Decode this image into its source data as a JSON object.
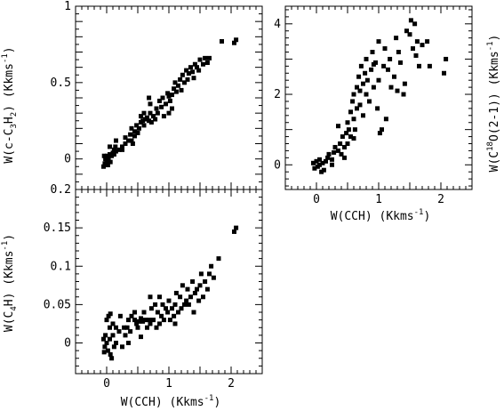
{
  "chart_data": [
    {
      "id": "c3h2",
      "type": "scatter",
      "xlabel": "",
      "ylabel_main": "W(c-C",
      "ylabel_sub1": "3",
      "ylabel_mid": "H",
      "ylabel_sub2": "2",
      "ylabel_tail": ") (Kkms",
      "ylabel_sup": "-1",
      "ylabel_close": ")",
      "xlim": [
        -0.5,
        2.5
      ],
      "ylim": [
        -0.2,
        1.0
      ],
      "yticks": [
        {
          "v": 0,
          "label": "0"
        },
        {
          "v": 0.5,
          "label": "0.5"
        },
        {
          "v": 1,
          "label": "1"
        }
      ],
      "xticks": [],
      "points": [
        [
          -0.05,
          -0.05
        ],
        [
          -0.03,
          -0.03
        ],
        [
          -0.02,
          0.0
        ],
        [
          0.0,
          -0.02
        ],
        [
          0.01,
          0.02
        ],
        [
          0.03,
          0.0
        ],
        [
          0.05,
          0.03
        ],
        [
          0.02,
          -0.04
        ],
        [
          0.06,
          -0.02
        ],
        [
          0.08,
          0.02
        ],
        [
          0.1,
          0.04
        ],
        [
          0.12,
          0.03
        ],
        [
          0.12,
          0.06
        ],
        [
          0.15,
          0.05
        ],
        [
          0.14,
          0.08
        ],
        [
          0.2,
          0.06
        ],
        [
          0.25,
          0.08
        ],
        [
          0.3,
          0.1
        ],
        [
          0.3,
          0.14
        ],
        [
          0.35,
          0.12
        ],
        [
          0.38,
          0.16
        ],
        [
          0.4,
          0.2
        ],
        [
          0.4,
          0.12
        ],
        [
          0.42,
          0.1
        ],
        [
          0.45,
          0.18
        ],
        [
          0.48,
          0.22
        ],
        [
          0.5,
          0.17
        ],
        [
          0.52,
          0.2
        ],
        [
          0.55,
          0.24
        ],
        [
          0.55,
          0.28
        ],
        [
          0.58,
          0.25
        ],
        [
          0.6,
          0.22
        ],
        [
          0.6,
          0.3
        ],
        [
          0.62,
          0.26
        ],
        [
          0.65,
          0.27
        ],
        [
          0.68,
          0.25
        ],
        [
          0.7,
          0.3
        ],
        [
          0.7,
          0.36
        ],
        [
          0.72,
          0.24
        ],
        [
          0.75,
          0.28
        ],
        [
          0.78,
          0.26
        ],
        [
          0.8,
          0.33
        ],
        [
          0.82,
          0.3
        ],
        [
          0.85,
          0.38
        ],
        [
          0.88,
          0.34
        ],
        [
          0.9,
          0.4
        ],
        [
          0.92,
          0.28
        ],
        [
          0.95,
          0.36
        ],
        [
          0.98,
          0.43
        ],
        [
          1.0,
          0.41
        ],
        [
          1.02,
          0.38
        ],
        [
          1.05,
          0.42
        ],
        [
          1.05,
          0.33
        ],
        [
          1.08,
          0.46
        ],
        [
          1.1,
          0.5
        ],
        [
          1.12,
          0.44
        ],
        [
          1.15,
          0.48
        ],
        [
          1.18,
          0.52
        ],
        [
          1.2,
          0.45
        ],
        [
          1.22,
          0.55
        ],
        [
          1.25,
          0.5
        ],
        [
          1.28,
          0.58
        ],
        [
          1.3,
          0.52
        ],
        [
          1.32,
          0.56
        ],
        [
          1.35,
          0.6
        ],
        [
          1.38,
          0.57
        ],
        [
          1.4,
          0.53
        ],
        [
          1.42,
          0.62
        ],
        [
          1.45,
          0.6
        ],
        [
          1.48,
          0.58
        ],
        [
          1.5,
          0.65
        ],
        [
          1.55,
          0.62
        ],
        [
          1.58,
          0.66
        ],
        [
          1.62,
          0.63
        ],
        [
          1.65,
          0.66
        ],
        [
          1.85,
          0.77
        ],
        [
          2.05,
          0.76
        ],
        [
          2.08,
          0.78
        ],
        [
          0.68,
          0.4
        ],
        [
          0.25,
          0.06
        ],
        [
          0.45,
          0.15
        ],
        [
          0.15,
          0.12
        ],
        [
          0.05,
          0.08
        ],
        [
          -0.04,
          0.02
        ],
        [
          1.0,
          0.3
        ]
      ]
    },
    {
      "id": "c18o",
      "type": "scatter",
      "xlabel_main": "W(CCH) (Kkms",
      "xlabel_sup": "-1",
      "xlabel_close": ")",
      "ylabel_main": "W(C",
      "ylabel_sup1": "18",
      "ylabel_mid": "O(2-1)) (Kkms",
      "ylabel_sup2": "-1",
      "ylabel_close": ")",
      "xlim": [
        -0.5,
        2.5
      ],
      "ylim": [
        -0.7,
        4.5
      ],
      "yticks": [
        {
          "v": 0,
          "label": "0"
        },
        {
          "v": 2,
          "label": "2"
        },
        {
          "v": 4,
          "label": "4"
        }
      ],
      "xticks": [
        {
          "v": 0,
          "label": "0"
        },
        {
          "v": 1,
          "label": "1"
        },
        {
          "v": 2,
          "label": "2"
        }
      ],
      "points": [
        [
          -0.05,
          0.05
        ],
        [
          -0.03,
          -0.1
        ],
        [
          0.0,
          0.1
        ],
        [
          0.02,
          -0.05
        ],
        [
          0.05,
          0.0
        ],
        [
          0.05,
          0.15
        ],
        [
          0.08,
          -0.2
        ],
        [
          0.1,
          0.05
        ],
        [
          0.12,
          -0.15
        ],
        [
          0.15,
          0.1
        ],
        [
          0.18,
          0.2
        ],
        [
          0.2,
          0.3
        ],
        [
          0.25,
          0.15
        ],
        [
          0.28,
          0.35
        ],
        [
          0.3,
          0.5
        ],
        [
          0.35,
          0.4
        ],
        [
          0.38,
          0.6
        ],
        [
          0.4,
          0.3
        ],
        [
          0.42,
          0.8
        ],
        [
          0.45,
          0.5
        ],
        [
          0.48,
          0.9
        ],
        [
          0.5,
          1.2
        ],
        [
          0.5,
          0.6
        ],
        [
          0.52,
          1.0
        ],
        [
          0.55,
          1.5
        ],
        [
          0.55,
          0.8
        ],
        [
          0.58,
          1.8
        ],
        [
          0.6,
          1.3
        ],
        [
          0.6,
          2.0
        ],
        [
          0.62,
          1.0
        ],
        [
          0.65,
          2.2
        ],
        [
          0.65,
          1.6
        ],
        [
          0.68,
          2.5
        ],
        [
          0.7,
          1.7
        ],
        [
          0.7,
          2.1
        ],
        [
          0.72,
          2.8
        ],
        [
          0.75,
          2.3
        ],
        [
          0.75,
          1.4
        ],
        [
          0.78,
          2.6
        ],
        [
          0.8,
          2.0
        ],
        [
          0.8,
          3.0
        ],
        [
          0.82,
          2.4
        ],
        [
          0.85,
          1.8
        ],
        [
          0.88,
          2.7
        ],
        [
          0.9,
          3.2
        ],
        [
          0.92,
          2.2
        ],
        [
          0.95,
          2.9
        ],
        [
          0.98,
          1.6
        ],
        [
          1.0,
          2.4
        ],
        [
          1.0,
          3.5
        ],
        [
          1.02,
          0.9
        ],
        [
          1.05,
          1.0
        ],
        [
          1.08,
          2.8
        ],
        [
          1.1,
          3.3
        ],
        [
          1.12,
          1.3
        ],
        [
          1.15,
          2.7
        ],
        [
          1.18,
          3.0
        ],
        [
          1.2,
          2.2
        ],
        [
          1.25,
          2.5
        ],
        [
          1.28,
          3.6
        ],
        [
          1.3,
          2.1
        ],
        [
          1.32,
          3.2
        ],
        [
          1.35,
          2.9
        ],
        [
          1.4,
          2.0
        ],
        [
          1.42,
          2.3
        ],
        [
          1.45,
          3.8
        ],
        [
          1.5,
          3.7
        ],
        [
          1.52,
          4.1
        ],
        [
          1.55,
          3.3
        ],
        [
          1.58,
          4.0
        ],
        [
          1.6,
          3.1
        ],
        [
          1.62,
          3.5
        ],
        [
          1.65,
          2.8
        ],
        [
          1.7,
          3.4
        ],
        [
          1.78,
          3.5
        ],
        [
          1.82,
          2.8
        ],
        [
          2.08,
          3.0
        ],
        [
          2.05,
          2.6
        ],
        [
          0.35,
          1.1
        ],
        [
          0.45,
          0.2
        ],
        [
          0.25,
          0.0
        ],
        [
          0.6,
          0.75
        ],
        [
          0.92,
          2.85
        ]
      ]
    },
    {
      "id": "c4h",
      "type": "scatter",
      "xlabel_main": "W(CCH) (Kkms",
      "xlabel_sup": "-1",
      "xlabel_close": ")",
      "ylabel_main": "W(C",
      "ylabel_sub": "4",
      "ylabel_mid": "H) (Kkms",
      "ylabel_sup": "-1",
      "ylabel_close": ")",
      "xlim": [
        -0.5,
        2.5
      ],
      "ylim": [
        -0.04,
        0.2
      ],
      "yticks": [
        {
          "v": 0,
          "label": "0"
        },
        {
          "v": 0.05,
          "label": "0.05"
        },
        {
          "v": 0.1,
          "label": "0.1"
        },
        {
          "v": 0.15,
          "label": "0.15"
        },
        {
          "v": 0.2,
          "label": "0.2"
        }
      ],
      "xticks": [
        {
          "v": 0,
          "label": "0"
        },
        {
          "v": 1,
          "label": "1"
        },
        {
          "v": 2,
          "label": "2"
        }
      ],
      "points": [
        [
          -0.05,
          0.005
        ],
        [
          -0.03,
          -0.005
        ],
        [
          -0.02,
          0.01
        ],
        [
          0.0,
          0.0
        ],
        [
          0.02,
          -0.01
        ],
        [
          0.05,
          0.005
        ],
        [
          0.06,
          -0.015
        ],
        [
          0.08,
          -0.02
        ],
        [
          0.1,
          0.01
        ],
        [
          0.12,
          -0.005
        ],
        [
          0.03,
          0.035
        ],
        [
          0.06,
          0.038
        ],
        [
          0.1,
          0.025
        ],
        [
          0.15,
          0.02
        ],
        [
          0.2,
          0.015
        ],
        [
          0.22,
          0.035
        ],
        [
          0.28,
          0.02
        ],
        [
          0.3,
          0.01
        ],
        [
          0.33,
          0.02
        ],
        [
          0.35,
          0.03
        ],
        [
          0.38,
          0.015
        ],
        [
          0.4,
          0.035
        ],
        [
          0.45,
          0.03
        ],
        [
          0.48,
          0.025
        ],
        [
          0.5,
          0.02
        ],
        [
          0.52,
          0.028
        ],
        [
          0.55,
          0.032
        ],
        [
          0.58,
          0.028
        ],
        [
          0.6,
          0.04
        ],
        [
          0.62,
          0.03
        ],
        [
          0.65,
          0.02
        ],
        [
          0.68,
          0.03
        ],
        [
          0.7,
          0.025
        ],
        [
          0.72,
          0.045
        ],
        [
          0.75,
          0.03
        ],
        [
          0.78,
          0.05
        ],
        [
          0.8,
          0.02
        ],
        [
          0.82,
          0.04
        ],
        [
          0.85,
          0.025
        ],
        [
          0.88,
          0.035
        ],
        [
          0.9,
          0.05
        ],
        [
          0.92,
          0.03
        ],
        [
          0.95,
          0.045
        ],
        [
          0.98,
          0.04
        ],
        [
          1.0,
          0.055
        ],
        [
          1.02,
          0.03
        ],
        [
          1.05,
          0.045
        ],
        [
          1.08,
          0.035
        ],
        [
          1.1,
          0.05
        ],
        [
          1.12,
          0.065
        ],
        [
          1.15,
          0.04
        ],
        [
          1.18,
          0.06
        ],
        [
          1.2,
          0.045
        ],
        [
          1.22,
          0.075
        ],
        [
          1.25,
          0.05
        ],
        [
          1.28,
          0.055
        ],
        [
          1.3,
          0.07
        ],
        [
          1.32,
          0.05
        ],
        [
          1.35,
          0.06
        ],
        [
          1.38,
          0.08
        ],
        [
          1.4,
          0.04
        ],
        [
          1.42,
          0.065
        ],
        [
          1.45,
          0.07
        ],
        [
          1.48,
          0.055
        ],
        [
          1.5,
          0.075
        ],
        [
          1.52,
          0.09
        ],
        [
          1.55,
          0.06
        ],
        [
          1.58,
          0.08
        ],
        [
          1.62,
          0.07
        ],
        [
          1.65,
          0.09
        ],
        [
          1.68,
          0.1
        ],
        [
          1.72,
          0.085
        ],
        [
          1.8,
          0.11
        ],
        [
          2.05,
          0.145
        ],
        [
          2.08,
          0.15
        ],
        [
          0.35,
          0.0
        ],
        [
          0.45,
          0.04
        ],
        [
          0.25,
          -0.005
        ],
        [
          0.7,
          0.06
        ],
        [
          0.05,
          0.02
        ],
        [
          -0.04,
          -0.012
        ],
        [
          0.0,
          0.03
        ],
        [
          0.15,
          0.0
        ],
        [
          0.55,
          0.008
        ],
        [
          0.85,
          0.06
        ],
        [
          1.1,
          0.025
        ]
      ]
    }
  ]
}
